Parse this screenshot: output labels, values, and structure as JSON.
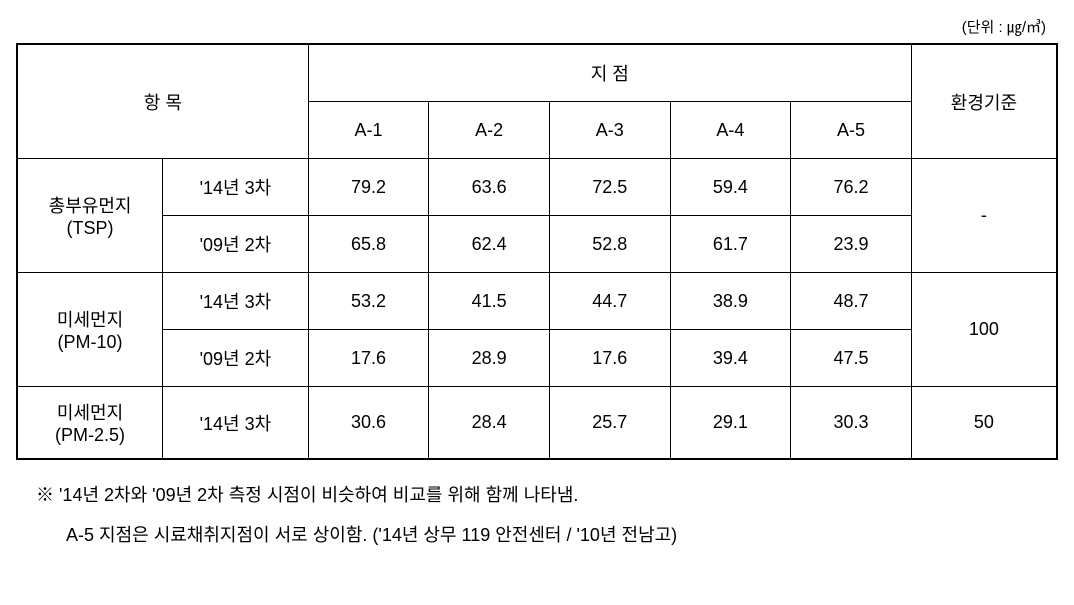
{
  "unit_label": "(단위 : ㎍/㎥)",
  "header": {
    "item": "항 목",
    "point": "지 점",
    "standard": "환경기준",
    "points": [
      "A-1",
      "A-2",
      "A-3",
      "A-4",
      "A-5"
    ]
  },
  "rows": [
    {
      "name": "총부유먼지\n(TSP)",
      "sub": [
        {
          "period": "'14년 3차",
          "values": [
            "79.2",
            "63.6",
            "72.5",
            "59.4",
            "76.2"
          ]
        },
        {
          "period": "'09년 2차",
          "values": [
            "65.8",
            "62.4",
            "52.8",
            "61.7",
            "23.9"
          ]
        }
      ],
      "standard": "-"
    },
    {
      "name": "미세먼지\n(PM-10)",
      "sub": [
        {
          "period": "'14년 3차",
          "values": [
            "53.2",
            "41.5",
            "44.7",
            "38.9",
            "48.7"
          ]
        },
        {
          "period": "'09년 2차",
          "values": [
            "17.6",
            "28.9",
            "17.6",
            "39.4",
            "47.5"
          ]
        }
      ],
      "standard": "100"
    },
    {
      "name": "미세먼지\n(PM-2.5)",
      "sub": [
        {
          "period": "'14년 3차",
          "values": [
            "30.6",
            "28.4",
            "25.7",
            "29.1",
            "30.3"
          ]
        }
      ],
      "standard": "50"
    }
  ],
  "notes": {
    "line1": "※ '14년 2차와 '09년 2차 측정 시점이 비슷하여 비교를 위해 함께 나타냄.",
    "line2": "A-5 지점은 시료채취지점이 서로 상이함. ('14년 상무 119 안전센터 / '10년 전남고)"
  },
  "style": {
    "background": "#ffffff",
    "text_color": "#000000",
    "border_color": "#000000",
    "font_size_table": 18,
    "font_size_unit": 15
  }
}
